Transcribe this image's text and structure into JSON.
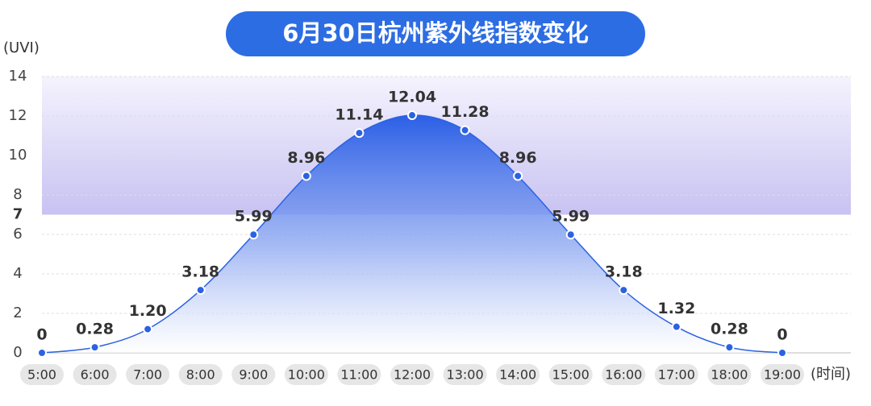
{
  "chart_data": {
    "type": "area",
    "title": "6月30日杭州紫外线指数变化",
    "y_label": "(UVI)",
    "x_label": "(时间)",
    "categories": [
      "5:00",
      "6:00",
      "7:00",
      "8:00",
      "9:00",
      "10:00",
      "11:00",
      "12:00",
      "13:00",
      "14:00",
      "15:00",
      "16:00",
      "17:00",
      "18:00",
      "19:00"
    ],
    "values": [
      0,
      0.28,
      1.2,
      3.18,
      5.99,
      8.96,
      11.14,
      12.04,
      11.28,
      8.96,
      5.99,
      3.18,
      1.32,
      0.28,
      0
    ],
    "value_labels": [
      "0",
      "0.28",
      "1.20",
      "3.18",
      "5.99",
      "8.96",
      "11.14",
      "12.04",
      "11.28",
      "8.96",
      "5.99",
      "3.18",
      "1.32",
      "0.28",
      "0"
    ],
    "color": "#2b62e3",
    "ylim": [
      0,
      14
    ],
    "yticks": [
      0,
      2,
      4,
      6,
      8,
      10,
      12,
      14
    ],
    "threshold": 7,
    "grid": true
  }
}
